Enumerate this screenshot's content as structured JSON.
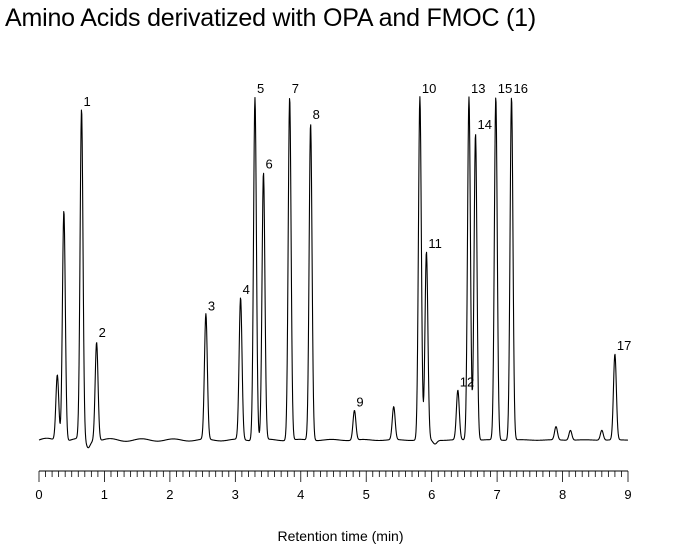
{
  "chart_data": {
    "type": "line",
    "title": "Amino Acids derivatized with OPA and FMOC (1)",
    "xlabel": "Retention time (min)",
    "ylabel": "",
    "xlim": [
      0,
      9
    ],
    "x_ticks": [
      "0",
      "1",
      "2",
      "3",
      "4",
      "5",
      "6",
      "7",
      "8",
      "9"
    ],
    "y_axis_shown": false,
    "grid": false,
    "baseline": 0,
    "series_color": "#000000",
    "labeled_peaks": [
      {
        "label": "1",
        "x": 0.65,
        "height": 100
      },
      {
        "label": "2",
        "x": 0.88,
        "height": 30
      },
      {
        "label": "3",
        "x": 2.55,
        "height": 38
      },
      {
        "label": "4",
        "x": 3.08,
        "height": 43
      },
      {
        "label": "5",
        "x": 3.3,
        "height": 104
      },
      {
        "label": "6",
        "x": 3.43,
        "height": 81
      },
      {
        "label": "7",
        "x": 3.83,
        "height": 104
      },
      {
        "label": "8",
        "x": 4.15,
        "height": 96
      },
      {
        "label": "9",
        "x": 4.82,
        "height": 9
      },
      {
        "label": "10",
        "x": 5.82,
        "height": 104
      },
      {
        "label": "11",
        "x": 5.92,
        "height": 57
      },
      {
        "label": "12",
        "x": 6.4,
        "height": 15
      },
      {
        "label": "13",
        "x": 6.57,
        "height": 104
      },
      {
        "label": "14",
        "x": 6.67,
        "height": 93
      },
      {
        "label": "15",
        "x": 6.98,
        "height": 104
      },
      {
        "label": "16",
        "x": 7.22,
        "height": 104
      },
      {
        "label": "17",
        "x": 8.8,
        "height": 26
      }
    ],
    "unlabeled_peaks": [
      {
        "x": 0.28,
        "height": 20
      },
      {
        "x": 0.38,
        "height": 70
      },
      {
        "x": 5.42,
        "height": 10
      },
      {
        "x": 7.9,
        "height": 4
      },
      {
        "x": 8.12,
        "height": 3
      },
      {
        "x": 8.6,
        "height": 3
      }
    ]
  }
}
